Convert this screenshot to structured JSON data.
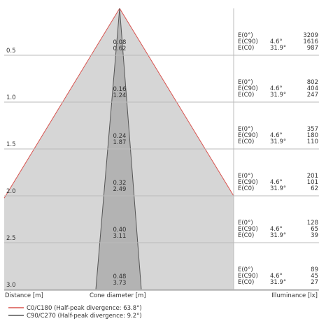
{
  "chart_data": {
    "type": "cone-diagram",
    "footer": {
      "left_label": "Distance [m]",
      "center_label": "Cone diameter [m]",
      "right_label": "Illuminance [lx]"
    },
    "legend": [
      {
        "label": "C0/C180 (Half-peak divergence: 63.8°)",
        "color": "#d9534f"
      },
      {
        "label": "C90/C270 (Half-peak divergence: 9.2°)",
        "color": "#555555"
      }
    ],
    "ylim": [
      0,
      3.0
    ],
    "rows": [
      {
        "distance": "0.5",
        "d1": "0.08",
        "d2": "0.62",
        "e_labels": [
          "E(0°)",
          "E(C90)",
          "E(C0)"
        ],
        "angles": [
          "4.6°",
          "31.9°"
        ],
        "values": [
          "3209",
          "1616",
          "987"
        ]
      },
      {
        "distance": "1.0",
        "d1": "0.16",
        "d2": "1.24",
        "e_labels": [
          "E(0°)",
          "E(C90)",
          "E(C0)"
        ],
        "angles": [
          "4.6°",
          "31.9°"
        ],
        "values": [
          "802",
          "404",
          "247"
        ]
      },
      {
        "distance": "1.5",
        "d1": "0.24",
        "d2": "1.87",
        "e_labels": [
          "E(0°)",
          "E(C90)",
          "E(C0)"
        ],
        "angles": [
          "4.6°",
          "31.9°"
        ],
        "values": [
          "357",
          "180",
          "110"
        ]
      },
      {
        "distance": "2.0",
        "d1": "0.32",
        "d2": "2.49",
        "e_labels": [
          "E(0°)",
          "E(C90)",
          "E(C0)"
        ],
        "angles": [
          "4.6°",
          "31.9°"
        ],
        "values": [
          "201",
          "101",
          "62"
        ]
      },
      {
        "distance": "2.5",
        "d1": "0.40",
        "d2": "3.11",
        "e_labels": [
          "E(0°)",
          "E(C90)",
          "E(C0)"
        ],
        "angles": [
          "4.6°",
          "31.9°"
        ],
        "values": [
          "128",
          "65",
          "39"
        ]
      },
      {
        "distance": "3.0",
        "d1": "0.48",
        "d2": "3.73",
        "e_labels": [
          "E(0°)",
          "E(C90)",
          "E(C0)"
        ],
        "angles": [
          "4.6°",
          "31.9°"
        ],
        "values": [
          "89",
          "45",
          "27"
        ]
      }
    ],
    "colors": {
      "wide_fill": "#d6d6d6",
      "narrow_fill": "#b3b3b3",
      "wide_line": "#d9534f",
      "narrow_line": "#555555",
      "grid": "#bbbbbb"
    }
  }
}
